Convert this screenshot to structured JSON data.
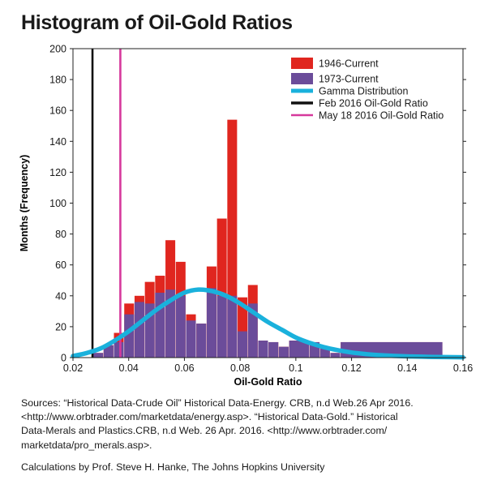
{
  "chart_data": {
    "type": "bar",
    "title": "Histogram of Oil-Gold Ratios",
    "xlabel": "Oil-Gold Ratio",
    "ylabel": "Months (Frequency)",
    "xlim": [
      0.02,
      0.16
    ],
    "ylim": [
      0,
      200
    ],
    "xticks": [
      "0.02",
      "0.04",
      "0.06",
      "0.08",
      "0.1",
      "0.12",
      "0.14",
      "0.16"
    ],
    "yticks": [
      "0",
      "20",
      "40",
      "60",
      "80",
      "100",
      "120",
      "140",
      "160",
      "180",
      "200"
    ],
    "legend_position": "top-right",
    "series": [
      {
        "name": "1946-Current",
        "color": "#e0261f",
        "bins": [
          {
            "x0": 0.0268,
            "x1": 0.0308,
            "value": 3
          },
          {
            "x0": 0.031,
            "x1": 0.0345,
            "value": 8
          },
          {
            "x0": 0.0347,
            "x1": 0.0382,
            "value": 16
          },
          {
            "x0": 0.0384,
            "x1": 0.0419,
            "value": 35
          },
          {
            "x0": 0.0421,
            "x1": 0.0456,
            "value": 40
          },
          {
            "x0": 0.0458,
            "x1": 0.0493,
            "value": 49
          },
          {
            "x0": 0.0495,
            "x1": 0.053,
            "value": 53
          },
          {
            "x0": 0.0532,
            "x1": 0.0567,
            "value": 76
          },
          {
            "x0": 0.0569,
            "x1": 0.0604,
            "value": 62
          },
          {
            "x0": 0.0606,
            "x1": 0.0641,
            "value": 28
          },
          {
            "x0": 0.0643,
            "x1": 0.0678,
            "value": 22
          },
          {
            "x0": 0.068,
            "x1": 0.0715,
            "value": 59
          },
          {
            "x0": 0.0717,
            "x1": 0.0752,
            "value": 90
          },
          {
            "x0": 0.0754,
            "x1": 0.0789,
            "value": 154
          },
          {
            "x0": 0.0791,
            "x1": 0.0826,
            "value": 39
          },
          {
            "x0": 0.0828,
            "x1": 0.0863,
            "value": 47
          },
          {
            "x0": 0.0865,
            "x1": 0.09,
            "value": 11
          },
          {
            "x0": 0.0902,
            "x1": 0.0937,
            "value": 10
          },
          {
            "x0": 0.0939,
            "x1": 0.0974,
            "value": 7
          },
          {
            "x0": 0.0976,
            "x1": 0.1048,
            "value": 11
          },
          {
            "x0": 0.105,
            "x1": 0.1085,
            "value": 10
          },
          {
            "x0": 0.1087,
            "x1": 0.1122,
            "value": 6
          },
          {
            "x0": 0.1124,
            "x1": 0.1159,
            "value": 3
          },
          {
            "x0": 0.1161,
            "x1": 0.1526,
            "value": 10
          }
        ]
      },
      {
        "name": "1973-Current",
        "color": "#6b4c9a",
        "bins": [
          {
            "x0": 0.0268,
            "x1": 0.0308,
            "value": 3
          },
          {
            "x0": 0.031,
            "x1": 0.0345,
            "value": 8
          },
          {
            "x0": 0.0347,
            "x1": 0.0382,
            "value": 10
          },
          {
            "x0": 0.0384,
            "x1": 0.0419,
            "value": 28
          },
          {
            "x0": 0.0421,
            "x1": 0.0456,
            "value": 36
          },
          {
            "x0": 0.0458,
            "x1": 0.0493,
            "value": 35
          },
          {
            "x0": 0.0495,
            "x1": 0.053,
            "value": 42
          },
          {
            "x0": 0.0532,
            "x1": 0.0567,
            "value": 44
          },
          {
            "x0": 0.0569,
            "x1": 0.0604,
            "value": 40
          },
          {
            "x0": 0.0606,
            "x1": 0.0641,
            "value": 24
          },
          {
            "x0": 0.0643,
            "x1": 0.0678,
            "value": 22
          },
          {
            "x0": 0.068,
            "x1": 0.0715,
            "value": 45
          },
          {
            "x0": 0.0717,
            "x1": 0.0752,
            "value": 40
          },
          {
            "x0": 0.0754,
            "x1": 0.0789,
            "value": 40
          },
          {
            "x0": 0.0791,
            "x1": 0.0826,
            "value": 17
          },
          {
            "x0": 0.0828,
            "x1": 0.0863,
            "value": 35
          },
          {
            "x0": 0.0865,
            "x1": 0.09,
            "value": 11
          },
          {
            "x0": 0.0902,
            "x1": 0.0937,
            "value": 10
          },
          {
            "x0": 0.0939,
            "x1": 0.0974,
            "value": 7
          },
          {
            "x0": 0.0976,
            "x1": 0.1048,
            "value": 11
          },
          {
            "x0": 0.105,
            "x1": 0.1085,
            "value": 10
          },
          {
            "x0": 0.1087,
            "x1": 0.1122,
            "value": 6
          },
          {
            "x0": 0.1124,
            "x1": 0.1159,
            "value": 3
          },
          {
            "x0": 0.1161,
            "x1": 0.1526,
            "value": 10
          }
        ]
      }
    ],
    "gamma_distribution": {
      "name": "Gamma Distribution",
      "color": "#1ab1dc",
      "points": [
        {
          "x": 0.02,
          "y": 1
        },
        {
          "x": 0.025,
          "y": 3
        },
        {
          "x": 0.03,
          "y": 6
        },
        {
          "x": 0.035,
          "y": 11
        },
        {
          "x": 0.04,
          "y": 17
        },
        {
          "x": 0.045,
          "y": 24
        },
        {
          "x": 0.05,
          "y": 31
        },
        {
          "x": 0.055,
          "y": 37
        },
        {
          "x": 0.06,
          "y": 42
        },
        {
          "x": 0.065,
          "y": 44
        },
        {
          "x": 0.07,
          "y": 43
        },
        {
          "x": 0.075,
          "y": 40
        },
        {
          "x": 0.08,
          "y": 35
        },
        {
          "x": 0.085,
          "y": 29
        },
        {
          "x": 0.09,
          "y": 23
        },
        {
          "x": 0.095,
          "y": 18
        },
        {
          "x": 0.1,
          "y": 13
        },
        {
          "x": 0.105,
          "y": 9.5
        },
        {
          "x": 0.11,
          "y": 6.8
        },
        {
          "x": 0.115,
          "y": 4.8
        },
        {
          "x": 0.12,
          "y": 3.3
        },
        {
          "x": 0.125,
          "y": 2.3
        },
        {
          "x": 0.13,
          "y": 1.6
        },
        {
          "x": 0.14,
          "y": 0.8
        },
        {
          "x": 0.15,
          "y": 0.4
        },
        {
          "x": 0.16,
          "y": 0.2
        }
      ]
    },
    "reference_lines": [
      {
        "name": "Feb 2016 Oil-Gold Ratio",
        "x": 0.027,
        "color": "#111111"
      },
      {
        "name": "May 18 2016 Oil-Gold Ratio",
        "x": 0.037,
        "color": "#d6399c"
      }
    ]
  },
  "sources": {
    "lines": [
      "Sources: “Historical Data-Crude Oil” Historical Data-Energy. CRB, n.d Web.26 Apr 2016.",
      "<http://www.orbtrader.com/marketdata/energy.asp>. “Historical Data-Gold.” Historical",
      "Data-Merals and Plastics.CRB, n.d Web. 26 Apr. 2016. <http://www.orbtrader.com/",
      "marketdata/pro_merals.asp>."
    ]
  },
  "credit": "Calculations by Prof. Steve H. Hanke, The Johns Hopkins University"
}
